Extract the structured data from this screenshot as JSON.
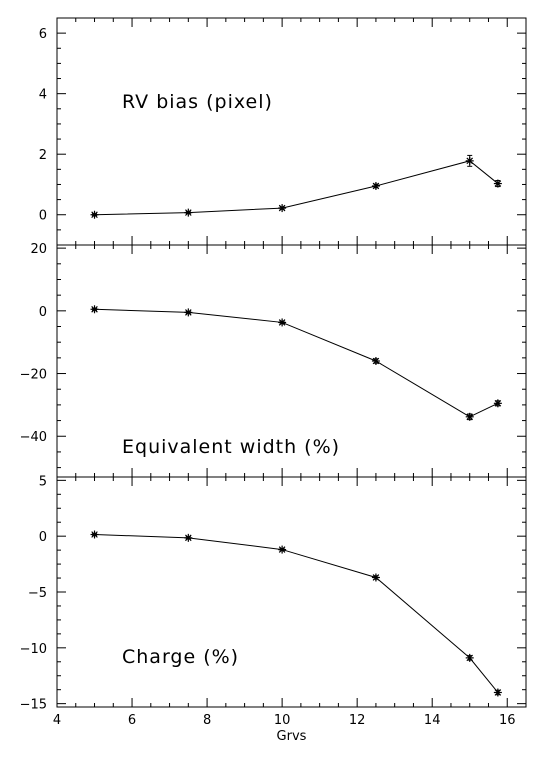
{
  "chart_data": [
    {
      "type": "line",
      "annotation": "RV bias (pixel)",
      "ylim": [
        -1.0,
        6.5
      ],
      "yticks": [
        0,
        2,
        4,
        6
      ],
      "xlim": [
        4,
        16.5
      ],
      "x": [
        5,
        7.5,
        10,
        12.5,
        15,
        15.75
      ],
      "series": [
        {
          "values": [
            0.0,
            0.07,
            0.22,
            0.95,
            1.78,
            1.03
          ],
          "errors": [
            0.03,
            0.03,
            0.04,
            0.06,
            0.18,
            0.1
          ]
        }
      ]
    },
    {
      "type": "line",
      "annotation": "Equivalent width (%)",
      "ylim": [
        -53,
        21
      ],
      "yticks": [
        -40,
        -20,
        0,
        20
      ],
      "xlim": [
        4,
        16.5
      ],
      "x": [
        5,
        7.5,
        10,
        12.5,
        15,
        15.75
      ],
      "series": [
        {
          "values": [
            0.5,
            -0.5,
            -3.7,
            -16.0,
            -33.8,
            -29.5
          ],
          "errors": [
            0.3,
            0.3,
            0.4,
            0.7,
            0.9,
            0.8
          ]
        }
      ]
    },
    {
      "type": "line",
      "annotation": "Charge (%)",
      "ylim": [
        -15.3,
        5.3
      ],
      "yticks": [
        -15,
        -10,
        -5,
        0,
        5
      ],
      "xlim": [
        4,
        16.5
      ],
      "xticks": [
        4,
        6,
        8,
        10,
        12,
        14,
        16
      ],
      "xlabel": "Grvs",
      "x": [
        5,
        7.5,
        10,
        12.5,
        15,
        15.75
      ],
      "series": [
        {
          "values": [
            0.15,
            -0.15,
            -1.2,
            -3.7,
            -10.9,
            -14.0
          ],
          "errors": [
            0.1,
            0.1,
            0.1,
            0.15,
            0.2,
            0.2
          ]
        }
      ]
    }
  ]
}
